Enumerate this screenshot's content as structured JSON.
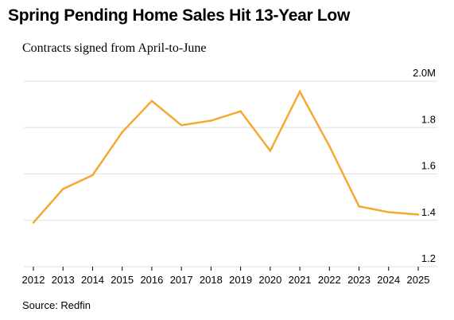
{
  "chart_data": {
    "type": "line",
    "title": "Spring Pending Home Sales Hit 13-Year Low",
    "subtitle": "Contracts signed from April-to-June",
    "source": "Source: Redfin",
    "x": [
      2012,
      2013,
      2014,
      2015,
      2016,
      2017,
      2018,
      2019,
      2020,
      2021,
      2022,
      2023,
      2024,
      2025
    ],
    "x_tick_labels": [
      "2012",
      "2013",
      "2014",
      "2015",
      "2016",
      "2017",
      "2018",
      "2019",
      "2020",
      "2021",
      "2022",
      "2023",
      "2024",
      "2025"
    ],
    "series": [
      {
        "values": [
          1.39,
          1.535,
          1.595,
          1.78,
          1.915,
          1.81,
          1.83,
          1.87,
          1.7,
          1.955,
          1.72,
          1.46,
          1.435,
          1.425
        ],
        "color": "#f5a833"
      }
    ],
    "ylim": [
      1.2,
      2.0
    ],
    "y_ticks": [
      1.2,
      1.4,
      1.6,
      1.8,
      2.0
    ],
    "y_tick_labels": [
      "1.2",
      "1.4",
      "1.6",
      "1.8",
      "2.0M"
    ],
    "y_axis_position": "right",
    "grid": true,
    "grid_color": "#e0e0e0"
  }
}
